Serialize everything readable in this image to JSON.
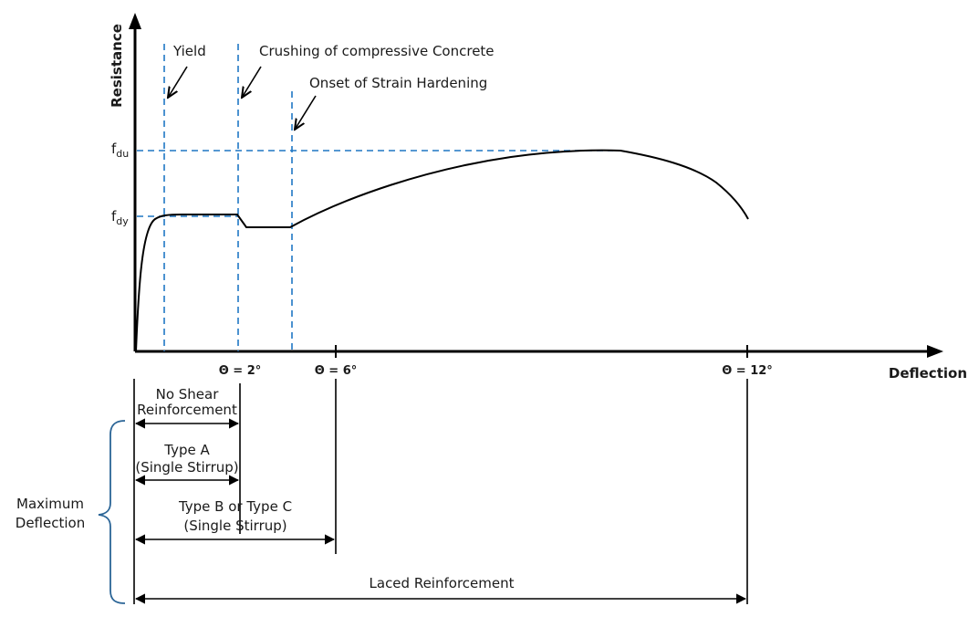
{
  "colors": {
    "guide": "#1f77c4",
    "ink": "#000000",
    "brace": "#2a6496"
  },
  "axes": {
    "y_title": "Resistance",
    "x_title": "Deflection",
    "f_du_main": "f",
    "f_du_sub": "du",
    "f_dy_main": "f",
    "f_dy_sub": "dy"
  },
  "ticks": [
    {
      "label": "Θ = 2°"
    },
    {
      "label": "Θ = 6°"
    },
    {
      "label": "Θ = 12°"
    }
  ],
  "annotations": {
    "yield": "Yield",
    "crushing": "Crushing of compressive Concrete",
    "onset": "Onset of Strain Hardening"
  },
  "ranges": {
    "no_shear_line1": "No Shear",
    "no_shear_line2": "Reinforcement",
    "type_a_line1": "Type A",
    "type_a_line2": "(Single Stirrup)",
    "type_bc_line1": "Type B or Type C",
    "type_bc_line2": "(Single Stirrup)",
    "laced": "Laced Reinforcement"
  },
  "brace_label": {
    "line1": "Maximum",
    "line2": "Deflection"
  }
}
